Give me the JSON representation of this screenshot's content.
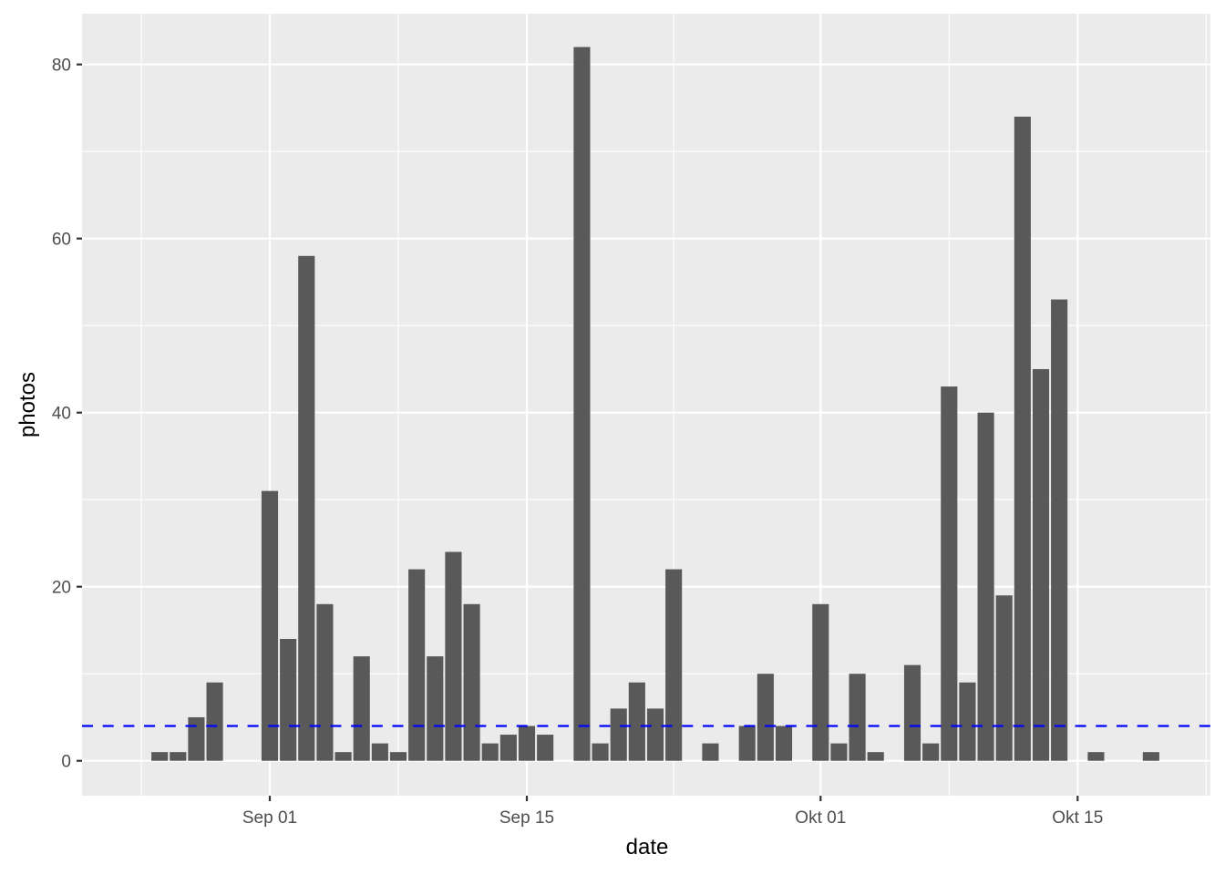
{
  "chart_data": {
    "type": "bar",
    "title": "",
    "xlabel": "date",
    "ylabel": "photos",
    "x_tick_labels": [
      "Sep 01",
      "Sep 15",
      "Okt 01",
      "Okt 15"
    ],
    "y_tick_labels": [
      "0",
      "20",
      "40",
      "60",
      "80"
    ],
    "y_ticks": [
      0,
      20,
      40,
      60,
      80
    ],
    "ylim": [
      -4.1,
      85.7
    ],
    "xlim_dates": [
      "Aug 22",
      "Okt 22"
    ],
    "grid": true,
    "background": "#EBEBEB",
    "bar_color": "#595959",
    "reference_line": {
      "y": 4,
      "style": "dashed",
      "color": "#0000FF"
    },
    "categories": [
      "Aug 26",
      "Aug 27",
      "Aug 28",
      "Aug 29",
      "Sep 01",
      "Sep 02",
      "Sep 03",
      "Sep 04",
      "Sep 05",
      "Sep 06",
      "Sep 07",
      "Sep 08",
      "Sep 09",
      "Sep 10",
      "Sep 11",
      "Sep 12",
      "Sep 13",
      "Sep 14",
      "Sep 15",
      "Sep 16",
      "Sep 18",
      "Sep 19",
      "Sep 20",
      "Sep 21",
      "Sep 22",
      "Sep 23",
      "Sep 25",
      "Sep 27",
      "Sep 28",
      "Sep 29",
      "Okt 01",
      "Okt 02",
      "Okt 03",
      "Okt 04",
      "Okt 06",
      "Okt 07",
      "Okt 08",
      "Okt 09",
      "Okt 10",
      "Okt 11",
      "Okt 12",
      "Okt 13",
      "Okt 14",
      "Okt 16",
      "Okt 19"
    ],
    "day_offsets": [
      -6,
      -5,
      -4,
      -3,
      0,
      1,
      2,
      3,
      4,
      5,
      6,
      7,
      8,
      9,
      10,
      11,
      12,
      13,
      14,
      15,
      17,
      18,
      19,
      20,
      21,
      22,
      24,
      26,
      27,
      28,
      30,
      31,
      32,
      33,
      35,
      36,
      37,
      38,
      39,
      40,
      41,
      42,
      43,
      45,
      48
    ],
    "values": [
      1,
      1,
      5,
      9,
      31,
      14,
      58,
      18,
      1,
      12,
      2,
      1,
      22,
      12,
      24,
      18,
      2,
      3,
      4,
      3,
      82,
      2,
      6,
      9,
      6,
      22,
      2,
      4,
      10,
      4,
      18,
      2,
      10,
      1,
      11,
      2,
      43,
      9,
      40,
      19,
      74,
      45,
      53,
      1,
      1
    ]
  }
}
